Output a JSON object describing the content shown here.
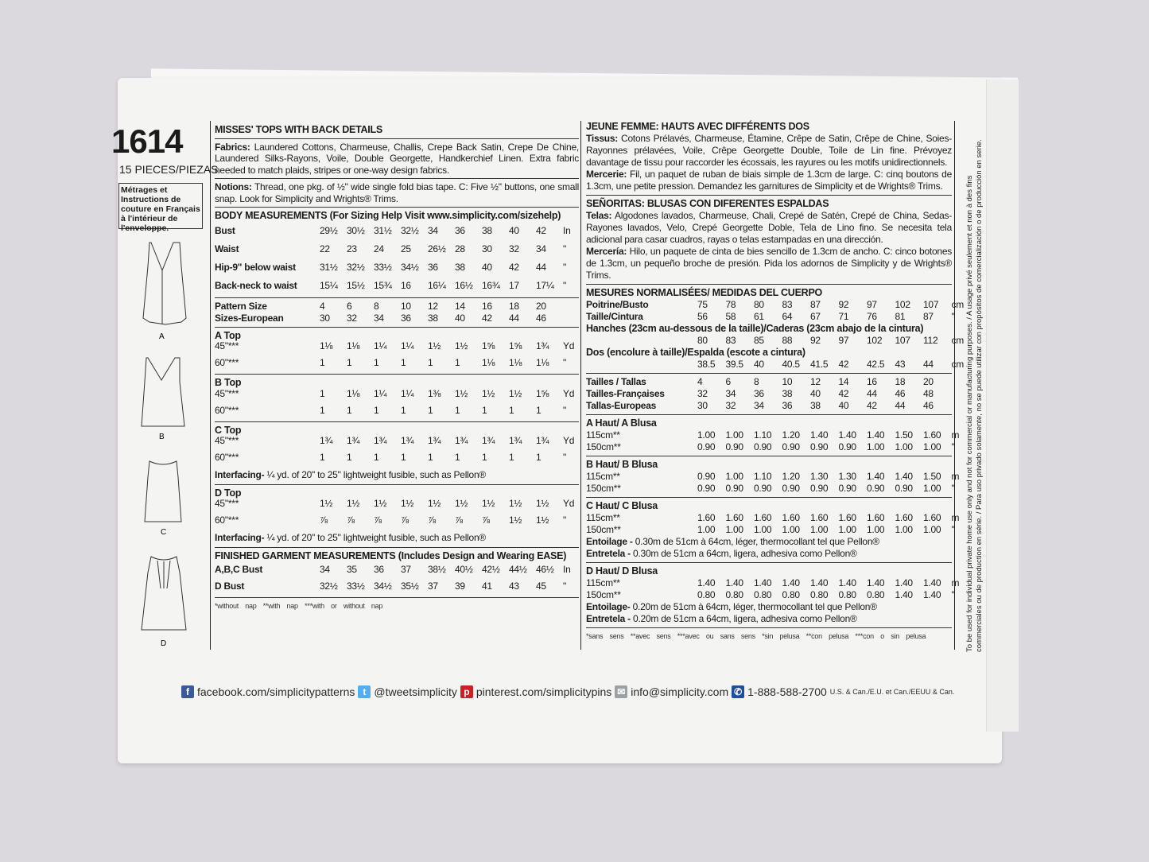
{
  "pattern_number": "1614",
  "pieces": "15 PIECES/PIEZAS",
  "french_note": "Métrages et Instructions de couture en Français à l'intérieur de l'enveloppe.",
  "view_labels": [
    "A",
    "B",
    "C",
    "D"
  ],
  "left": {
    "title": "MISSES' TOPS WITH BACK DETAILS",
    "fabrics_label": "Fabrics:",
    "fabrics_text": "Laundered Cottons, Charmeuse, Challis, Crepe Back Satin, Crepe De Chine, Laundered Silks-Rayons, Voile, Double Georgette, Handkerchief Linen. Extra fabric needed to match plaids, stripes or one-way design fabrics.",
    "notions_label": "Notions:",
    "notions_text": "Thread, one pkg. of ½\" wide single fold bias tape. C: Five ½\" buttons, one small snap. Look for Simplicity and Wrights® Trims.",
    "body_heading": "BODY MEASUREMENTS (For Sizing Help Visit www.simplicity.com/sizehelp)",
    "body_rows": [
      {
        "label": "Bust",
        "values": [
          "29½",
          "30½",
          "31½",
          "32½",
          "34",
          "36",
          "38",
          "40",
          "42"
        ],
        "unit": "In"
      },
      {
        "label": "Waist",
        "values": [
          "22",
          "23",
          "24",
          "25",
          "26½",
          "28",
          "30",
          "32",
          "34"
        ],
        "unit": "\""
      },
      {
        "label": "Hip-9\" below waist",
        "values": [
          "31½",
          "32½",
          "33½",
          "34½",
          "36",
          "38",
          "40",
          "42",
          "44"
        ],
        "unit": "\""
      },
      {
        "label": "Back-neck to waist",
        "values": [
          "15¼",
          "15½",
          "15¾",
          "16",
          "16¼",
          "16½",
          "16¾",
          "17",
          "17¼"
        ],
        "unit": "\""
      }
    ],
    "size_rows": [
      {
        "label": "Pattern Size",
        "values": [
          "4",
          "6",
          "8",
          "10",
          "12",
          "14",
          "16",
          "18",
          "20"
        ],
        "unit": ""
      },
      {
        "label": "Sizes-European",
        "values": [
          "30",
          "32",
          "34",
          "36",
          "38",
          "40",
          "42",
          "44",
          "46"
        ],
        "unit": ""
      }
    ],
    "views": [
      {
        "name": "A Top",
        "rows": [
          {
            "label": "45\"***",
            "values": [
              "1⅛",
              "1⅛",
              "1¼",
              "1¼",
              "1½",
              "1½",
              "1⅝",
              "1⅝",
              "1¾"
            ],
            "unit": "Yd"
          },
          {
            "label": "60\"***",
            "values": [
              "1",
              "1",
              "1",
              "1",
              "1",
              "1",
              "1⅛",
              "1⅛",
              "1⅛"
            ],
            "unit": "\""
          }
        ]
      },
      {
        "name": "B Top",
        "rows": [
          {
            "label": "45\"***",
            "values": [
              "1",
              "1⅛",
              "1¼",
              "1¼",
              "1⅜",
              "1½",
              "1½",
              "1½",
              "1⅝"
            ],
            "unit": "Yd"
          },
          {
            "label": "60\"***",
            "values": [
              "1",
              "1",
              "1",
              "1",
              "1",
              "1",
              "1",
              "1",
              "1"
            ],
            "unit": "\""
          }
        ]
      },
      {
        "name": "C Top",
        "rows": [
          {
            "label": "45\"***",
            "values": [
              "1¾",
              "1¾",
              "1¾",
              "1¾",
              "1¾",
              "1¾",
              "1¾",
              "1¾",
              "1¾"
            ],
            "unit": "Yd"
          },
          {
            "label": "60\"***",
            "values": [
              "1",
              "1",
              "1",
              "1",
              "1",
              "1",
              "1",
              "1",
              "1"
            ],
            "unit": "\""
          }
        ],
        "note_label": "Interfacing-",
        "note": "¼ yd. of 20\" to 25\" lightweight fusible, such as Pellon®"
      },
      {
        "name": "D Top",
        "rows": [
          {
            "label": "45\"***",
            "values": [
              "1½",
              "1½",
              "1½",
              "1½",
              "1½",
              "1½",
              "1½",
              "1½",
              "1½"
            ],
            "unit": "Yd"
          },
          {
            "label": "60\"***",
            "values": [
              "⅞",
              "⅞",
              "⅞",
              "⅞",
              "⅞",
              "⅞",
              "⅞",
              "1½",
              "1½"
            ],
            "unit": "\""
          }
        ],
        "note_label": "Interfacing-",
        "note": "¼ yd. of 20\" to 25\" lightweight fusible, such as Pellon®"
      }
    ],
    "finished_heading": "FINISHED GARMENT MEASUREMENTS (Includes Design and Wearing EASE)",
    "finished_rows": [
      {
        "label": "A,B,C Bust",
        "values": [
          "34",
          "35",
          "36",
          "37",
          "38½",
          "40½",
          "42½",
          "44½",
          "46½"
        ],
        "unit": "In"
      },
      {
        "label": "D Bust",
        "values": [
          "32½",
          "33½",
          "34½",
          "35½",
          "37",
          "39",
          "41",
          "43",
          "45"
        ],
        "unit": "\""
      }
    ],
    "footnote": "*without nap **with nap ***with or without nap"
  },
  "right": {
    "fr_title": "JEUNE FEMME: HAUTS AVEC DIFFÉRENTS DOS",
    "fr_fabrics_label": "Tissus:",
    "fr_fabrics_text": "Cotons Prélavés, Charmeuse, Étamine, Crêpe de Satin, Crêpe de Chine, Soies-Rayonnes prélavées, Voile, Crêpe Georgette Double, Toile de Lin fine. Prévoyez davantage de tissu pour raccorder les écossais, les rayures ou les motifs unidirectionnels.",
    "fr_notions_label": "Mercerie:",
    "fr_notions_text": "Fil, un paquet de ruban de biais simple de 1.3cm de large. C: cinq boutons de 1.3cm, une petite pression. Demandez les garnitures de Simplicity et de Wrights® Trims.",
    "es_title": "SEÑORITAS: BLUSAS CON DIFERENTES ESPALDAS",
    "es_fabrics_label": "Telas:",
    "es_fabrics_text": "Algodones lavados, Charmeuse, Chali, Crepé de Satén, Crepé de China, Sedas-Rayones lavados, Velo, Crepé Georgette Doble, Tela de Lino fino. Se necesita tela adicional para casar cuadros, rayas o telas estampadas en una dirección.",
    "es_notions_label": "Mercería:",
    "es_notions_text": "Hilo, un paquete de cinta de bies sencillo de 1.3cm de ancho. C: cinco botones de 1.3cm, un pequeño broche de presión. Pida los adornos de Simplicity y de Wrights® Trims.",
    "body_heading": "MESURES NORMALISÉES/ MEDIDAS DEL CUERPO",
    "body_rows": [
      {
        "label": "Poitrine/Busto",
        "values": [
          "75",
          "78",
          "80",
          "83",
          "87",
          "92",
          "97",
          "102",
          "107"
        ],
        "unit": "cm"
      },
      {
        "label": "Taille/Cintura",
        "values": [
          "56",
          "58",
          "61",
          "64",
          "67",
          "71",
          "76",
          "81",
          "87"
        ],
        "unit": "\""
      },
      {
        "label": "Hanches (23cm au-dessous de la taille)/Caderas (23cm abajo de la cintura)",
        "values": [
          "80",
          "83",
          "85",
          "88",
          "92",
          "97",
          "102",
          "107",
          "112"
        ],
        "unit": "cm"
      },
      {
        "label": "Dos (encolure à taille)/Espalda (escote a cintura)",
        "values": [
          "38.5",
          "39.5",
          "40",
          "40.5",
          "41.5",
          "42",
          "42.5",
          "43",
          "44"
        ],
        "unit": "cm"
      }
    ],
    "size_rows": [
      {
        "label": "Tailles / Tallas",
        "values": [
          "4",
          "6",
          "8",
          "10",
          "12",
          "14",
          "16",
          "18",
          "20"
        ],
        "unit": ""
      },
      {
        "label": "Tailles-Françaises",
        "values": [
          "32",
          "34",
          "36",
          "38",
          "40",
          "42",
          "44",
          "46",
          "48"
        ],
        "unit": ""
      },
      {
        "label": "Tallas-Europeas",
        "values": [
          "30",
          "32",
          "34",
          "36",
          "38",
          "40",
          "42",
          "44",
          "46"
        ],
        "unit": ""
      }
    ],
    "views": [
      {
        "name": "A Haut/ A Blusa",
        "rows": [
          {
            "label": "115cm**",
            "values": [
              "1.00",
              "1.00",
              "1.10",
              "1.20",
              "1.40",
              "1.40",
              "1.40",
              "1.50",
              "1.60"
            ],
            "unit": "m"
          },
          {
            "label": "150cm**",
            "values": [
              "0.90",
              "0.90",
              "0.90",
              "0.90",
              "0.90",
              "0.90",
              "1.00",
              "1.00",
              "1.00"
            ],
            "unit": "\""
          }
        ]
      },
      {
        "name": "B Haut/ B Blusa",
        "rows": [
          {
            "label": "115cm**",
            "values": [
              "0.90",
              "1.00",
              "1.10",
              "1.20",
              "1.30",
              "1.30",
              "1.40",
              "1.40",
              "1.50"
            ],
            "unit": "m"
          },
          {
            "label": "150cm**",
            "values": [
              "0.90",
              "0.90",
              "0.90",
              "0.90",
              "0.90",
              "0.90",
              "0.90",
              "0.90",
              "1.00"
            ],
            "unit": "\""
          }
        ]
      },
      {
        "name": "C Haut/ C Blusa",
        "rows": [
          {
            "label": "115cm**",
            "values": [
              "1.60",
              "1.60",
              "1.60",
              "1.60",
              "1.60",
              "1.60",
              "1.60",
              "1.60",
              "1.60"
            ],
            "unit": "m"
          },
          {
            "label": "150cm**",
            "values": [
              "1.00",
              "1.00",
              "1.00",
              "1.00",
              "1.00",
              "1.00",
              "1.00",
              "1.00",
              "1.00"
            ],
            "unit": "\""
          }
        ],
        "notes": [
          {
            "label": "Entoilage -",
            "text": "0.30m de 51cm à 64cm, léger, thermocollant tel que Pellon®"
          },
          {
            "label": "Entretela -",
            "text": "0.30m de 51cm a 64cm, ligera, adhesiva como Pellon®"
          }
        ]
      },
      {
        "name": "D Haut/ D Blusa",
        "rows": [
          {
            "label": "115cm**",
            "values": [
              "1.40",
              "1.40",
              "1.40",
              "1.40",
              "1.40",
              "1.40",
              "1.40",
              "1.40",
              "1.40"
            ],
            "unit": "m"
          },
          {
            "label": "150cm**",
            "values": [
              "0.80",
              "0.80",
              "0.80",
              "0.80",
              "0.80",
              "0.80",
              "0.80",
              "1.40",
              "1.40"
            ],
            "unit": "\""
          }
        ],
        "notes": [
          {
            "label": "Entoilage-",
            "text": "0.20m de 51cm à 64cm, léger, thermocollant tel que Pellon®"
          },
          {
            "label": "Entretela -",
            "text": "0.20m de 51cm a 64cm, ligera, adhesiva como Pellon®"
          }
        ]
      }
    ],
    "footnote": "*sans sens **avec sens ***avec ou sans sens   *sin pelusa **con pelusa ***con o sin pelusa"
  },
  "legal_text_1": "To be used for individual private home use only and not for commercial or manufacturing purposes. / A usage privé seulement et non à des fins",
  "legal_text_2": "commerciales ou de production en série. / Para uso privado solamente, no se puede utilizar con propósitos de comercialización o de producción en serie.",
  "social": {
    "facebook": "facebook.com/simplicitypatterns",
    "twitter": "@tweetsimplicity",
    "pinterest": "pinterest.com/simplicitypins",
    "email": "info@simplicity.com",
    "phone": "1-888-588-2700",
    "phone_region": "U.S. & Can./E.U. et Can./EEUU & Can.",
    "icons": {
      "facebook": "#3b5998",
      "twitter": "#55acee",
      "pinterest": "#cb2027",
      "email": "#9aa0a6",
      "phone": "#1f4e9b"
    }
  }
}
